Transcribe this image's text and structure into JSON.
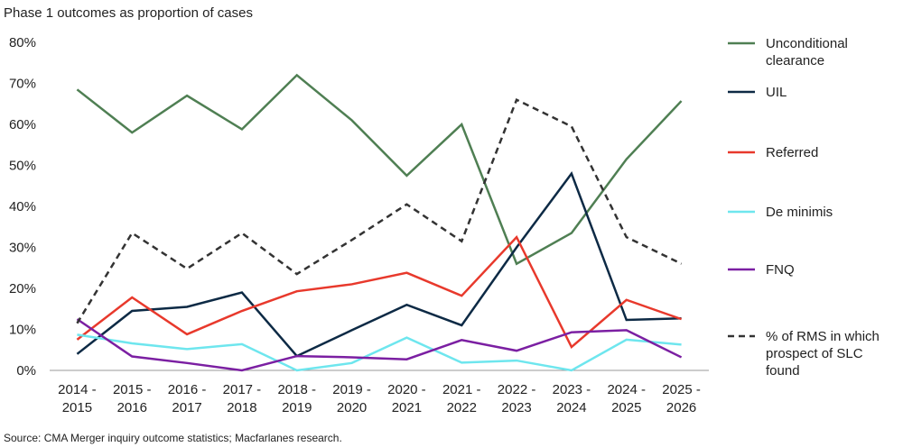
{
  "chart_data": {
    "type": "line",
    "title": "Phase 1 outcomes as proportion of cases",
    "source": "Source: CMA Merger inquiry outcome statistics; Macfarlanes research.",
    "categories": [
      "2014 - 2015",
      "2015 - 2016",
      "2016 - 2017",
      "2017 - 2018",
      "2018 - 2019",
      "2019 - 2020",
      "2020 - 2021",
      "2021 - 2022",
      "2022 - 2023",
      "2023 - 2024",
      "2024 - 2025",
      "2025 - 2026"
    ],
    "ylim": [
      0,
      80
    ],
    "yticks": [
      {
        "value": 0,
        "label": "0%"
      },
      {
        "value": 10,
        "label": "10%"
      },
      {
        "value": 20,
        "label": "20%"
      },
      {
        "value": 30,
        "label": "30%"
      },
      {
        "value": 40,
        "label": "40%"
      },
      {
        "value": 50,
        "label": "50%"
      },
      {
        "value": 60,
        "label": "60%"
      },
      {
        "value": 70,
        "label": "70%"
      },
      {
        "value": 80,
        "label": "80%"
      }
    ],
    "legend": "right",
    "series": [
      {
        "name": "Unconditional clearance",
        "color": "#4f7f53",
        "dash": false,
        "values": [
          68.5,
          58,
          67,
          58.8,
          72,
          61,
          47.5,
          60,
          26,
          33.5,
          51.5,
          65.7
        ]
      },
      {
        "name": "UIL",
        "color": "#0d2a45",
        "dash": false,
        "values": [
          4,
          14.5,
          15.5,
          19,
          3.5,
          9.8,
          16,
          11,
          30,
          48,
          12.3,
          12.7
        ]
      },
      {
        "name": "Referred",
        "color": "#e8392c",
        "dash": false,
        "values": [
          7.5,
          17.8,
          8.8,
          14.5,
          19.3,
          21,
          23.8,
          18.2,
          32.5,
          5.7,
          17.2,
          12.5
        ]
      },
      {
        "name": "De minimis",
        "color": "#6ee6ee",
        "dash": false,
        "values": [
          8.7,
          6.6,
          5.2,
          6.4,
          0,
          1.8,
          8,
          1.9,
          2.4,
          0,
          7.5,
          6.3
        ]
      },
      {
        "name": "FNQ",
        "color": "#7b1fa2",
        "dash": false,
        "values": [
          12.5,
          3.4,
          1.8,
          0,
          3.5,
          3.2,
          2.7,
          7.4,
          4.8,
          9.3,
          9.8,
          3.2
        ]
      },
      {
        "name": "% of RMS in which prospect of SLC found",
        "color": "#333333",
        "dash": true,
        "values": [
          11.5,
          33.5,
          24.8,
          33.5,
          23.5,
          31.8,
          40.5,
          31.5,
          66,
          59.5,
          32.5,
          26
        ]
      }
    ]
  }
}
